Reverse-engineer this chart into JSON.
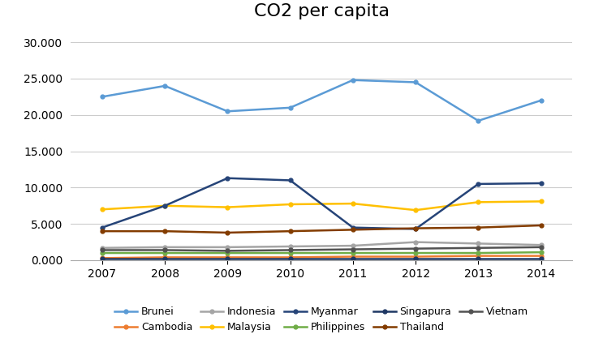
{
  "title": "CO2 per capita",
  "years": [
    2007,
    2008,
    2009,
    2010,
    2011,
    2012,
    2013,
    2014
  ],
  "series": {
    "Brunei": [
      22500,
      24000,
      20500,
      21000,
      24800,
      24500,
      19200,
      22000
    ],
    "Cambodia": [
      300,
      400,
      400,
      400,
      500,
      500,
      600,
      600
    ],
    "Indonesia": [
      1700,
      1800,
      1800,
      1900,
      2000,
      2500,
      2300,
      2100
    ],
    "Malaysia": [
      7000,
      7500,
      7300,
      7700,
      7800,
      6900,
      8000,
      8100
    ],
    "Myanmar": [
      4500,
      7500,
      11300,
      11000,
      4500,
      4300,
      10500,
      10600
    ],
    "Philippines": [
      1000,
      1000,
      1000,
      1000,
      1000,
      1000,
      1000,
      1100
    ],
    "Singapura": [
      200,
      200,
      200,
      200,
      200,
      200,
      200,
      200
    ],
    "Thailand": [
      4000,
      4000,
      3800,
      4000,
      4200,
      4400,
      4500,
      4800
    ],
    "Vietnam": [
      1400,
      1400,
      1300,
      1400,
      1500,
      1600,
      1700,
      1800
    ]
  },
  "colors": {
    "Brunei": "#5B9BD5",
    "Cambodia": "#ED7D31",
    "Indonesia": "#A5A5A5",
    "Malaysia": "#FFC000",
    "Myanmar": "#264478",
    "Philippines": "#70AD47",
    "Singapura": "#1F3864",
    "Thailand": "#833C00",
    "Vietnam": "#525252"
  },
  "legend_order": [
    "Brunei",
    "Cambodia",
    "Indonesia",
    "Malaysia",
    "Myanmar",
    "Philippines",
    "Singapura",
    "Thailand",
    "Vietnam"
  ],
  "ylim": [
    0,
    32000
  ],
  "yticks": [
    0,
    5000,
    10000,
    15000,
    20000,
    25000,
    30000
  ],
  "background_color": "#FFFFFF",
  "title_fontsize": 16,
  "tick_fontsize": 10,
  "legend_fontsize": 9
}
